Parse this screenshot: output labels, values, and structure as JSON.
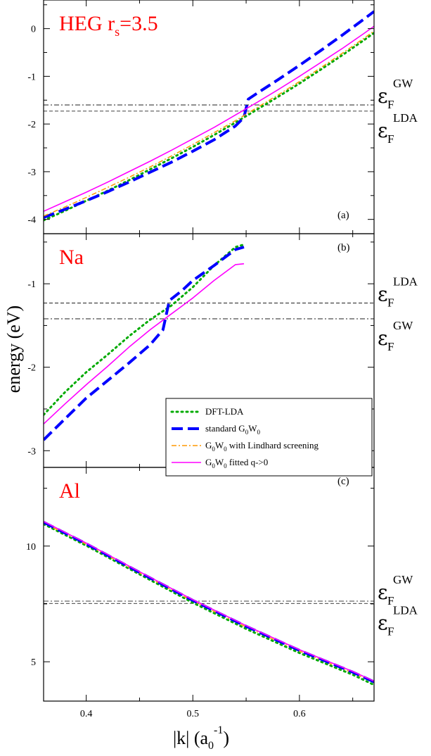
{
  "colors": {
    "dft_lda": "#00aa00",
    "standard_g0w0": "#0000ff",
    "lindhard": "#ff9900",
    "fitted": "#ff00ff",
    "title": "#ff0000"
  },
  "xlabel": {
    "main": "|k| (a",
    "sub": "0",
    "sup": "-1",
    "close": ")"
  },
  "ylabel": "energy (eV)",
  "legend": {
    "items": [
      {
        "series": "dft_lda",
        "text": "DFT-LDA"
      },
      {
        "series": "standard_g0w0",
        "prefix": "standard G",
        "sub1": "0",
        "mid": "W",
        "sub2": "0",
        "suffix": ""
      },
      {
        "series": "lindhard",
        "prefix": "G",
        "sub1": "0",
        "mid": "W",
        "sub2": "0",
        "suffix": " with Lindhard screening"
      },
      {
        "series": "fitted",
        "prefix": "G",
        "sub1": "0",
        "mid": "W",
        "sub2": "0",
        "suffix": " fitted q->0"
      }
    ]
  },
  "chart_data": [
    {
      "type": "line",
      "panel_title": {
        "main": "HEG r",
        "sub": "s",
        "tail": "=3.5"
      },
      "panel_letter": "(a)",
      "xlim": [
        0.36,
        0.67
      ],
      "ylim": [
        -4.3,
        0.6
      ],
      "yticks": [
        -4,
        -3,
        -2,
        -1,
        0
      ],
      "xticks": [
        0.4,
        0.5,
        0.6
      ],
      "fermi": [
        {
          "label": "GW",
          "value": -1.6,
          "style": "dashdot"
        },
        {
          "label": "LDA",
          "value": -1.73,
          "style": "dashed"
        }
      ],
      "series": [
        {
          "key": "dft_lda",
          "name": "DFT-LDA",
          "x": [
            0.36,
            0.38,
            0.4,
            0.42,
            0.44,
            0.46,
            0.48,
            0.5,
            0.52,
            0.54,
            0.56,
            0.58,
            0.6,
            0.62,
            0.64,
            0.66,
            0.67
          ],
          "y": [
            -4.02,
            -3.82,
            -3.61,
            -3.4,
            -3.18,
            -2.95,
            -2.72,
            -2.48,
            -2.23,
            -1.97,
            -1.7,
            -1.43,
            -1.15,
            -0.86,
            -0.56,
            -0.25,
            -0.09
          ]
        },
        {
          "key": "standard_g0w0",
          "name": "standard G0W0",
          "x": [
            0.36,
            0.38,
            0.4,
            0.42,
            0.44,
            0.46,
            0.48,
            0.5,
            0.52,
            0.54,
            0.548,
            0.552,
            0.56,
            0.58,
            0.6,
            0.62,
            0.64,
            0.66,
            0.67
          ],
          "y": [
            -3.96,
            -3.79,
            -3.61,
            -3.42,
            -3.22,
            -3.01,
            -2.8,
            -2.57,
            -2.33,
            -2.04,
            -1.86,
            -1.48,
            -1.36,
            -1.07,
            -0.77,
            -0.46,
            -0.14,
            0.19,
            0.36
          ]
        },
        {
          "key": "lindhard",
          "name": "G0W0 with Lindhard screening",
          "x": [
            0.36,
            0.38,
            0.4,
            0.42,
            0.44,
            0.46,
            0.48,
            0.5,
            0.52,
            0.54,
            0.56,
            0.58,
            0.6,
            0.62,
            0.64,
            0.66,
            0.67
          ],
          "y": [
            -3.93,
            -3.74,
            -3.54,
            -3.33,
            -3.12,
            -2.9,
            -2.67,
            -2.43,
            -2.18,
            -1.93,
            -1.66,
            -1.39,
            -1.11,
            -0.82,
            -0.52,
            -0.21,
            -0.05
          ]
        },
        {
          "key": "fitted",
          "name": "G0W0 fitted q->0",
          "x": [
            0.36,
            0.38,
            0.4,
            0.42,
            0.44,
            0.46,
            0.48,
            0.5,
            0.52,
            0.54,
            0.56,
            0.58,
            0.6,
            0.62,
            0.64,
            0.66,
            0.67
          ],
          "y": [
            -3.83,
            -3.63,
            -3.43,
            -3.22,
            -3.0,
            -2.78,
            -2.55,
            -2.31,
            -2.07,
            -1.81,
            -1.55,
            -1.28,
            -1.0,
            -0.71,
            -0.42,
            -0.11,
            0.05
          ]
        }
      ]
    },
    {
      "type": "line",
      "panel_title": {
        "main": "Na",
        "sub": "",
        "tail": ""
      },
      "panel_letter": "(b)",
      "xlim": [
        0.36,
        0.67
      ],
      "ylim": [
        -3.2,
        -0.4
      ],
      "yticks": [
        -3,
        -2,
        -1
      ],
      "xticks": [
        0.4,
        0.5,
        0.6
      ],
      "fermi": [
        {
          "label": "LDA",
          "value": -1.23,
          "style": "dashed"
        },
        {
          "label": "GW",
          "value": -1.42,
          "style": "dashdot"
        }
      ],
      "series": [
        {
          "key": "dft_lda",
          "name": "DFT-LDA",
          "x": [
            0.36,
            0.38,
            0.4,
            0.42,
            0.44,
            0.46,
            0.48,
            0.5,
            0.52,
            0.54,
            0.548
          ],
          "y": [
            -2.57,
            -2.3,
            -2.06,
            -1.85,
            -1.63,
            -1.43,
            -1.26,
            -1.04,
            -0.78,
            -0.56,
            -0.53
          ]
        },
        {
          "key": "standard_g0w0",
          "name": "standard G0W0",
          "x": [
            0.36,
            0.38,
            0.4,
            0.42,
            0.44,
            0.46,
            0.472,
            0.478,
            0.49,
            0.5,
            0.52,
            0.54,
            0.548
          ],
          "y": [
            -2.87,
            -2.62,
            -2.37,
            -2.16,
            -1.95,
            -1.73,
            -1.55,
            -1.2,
            -1.08,
            -0.96,
            -0.78,
            -0.59,
            -0.56
          ]
        },
        {
          "key": "fitted",
          "name": "G0W0 fitted q->0",
          "x": [
            0.36,
            0.38,
            0.4,
            0.42,
            0.44,
            0.46,
            0.48,
            0.5,
            0.52,
            0.54,
            0.548
          ],
          "y": [
            -2.68,
            -2.44,
            -2.21,
            -1.99,
            -1.76,
            -1.55,
            -1.36,
            -1.17,
            -0.96,
            -0.77,
            -0.76
          ]
        }
      ]
    },
    {
      "type": "line",
      "panel_title": {
        "main": "Al",
        "sub": "",
        "tail": ""
      },
      "panel_letter": "(c)",
      "xlim": [
        0.36,
        0.67
      ],
      "ylim": [
        3.3,
        13.4
      ],
      "yticks": [
        5,
        10
      ],
      "xticks": [
        0.4,
        0.5,
        0.6
      ],
      "fermi": [
        {
          "label": "GW",
          "value": 7.62,
          "style": "dashdot"
        },
        {
          "label": "LDA",
          "value": 7.52,
          "style": "dashed"
        }
      ],
      "series": [
        {
          "key": "dft_lda",
          "name": "DFT-LDA",
          "x": [
            0.36,
            0.4,
            0.45,
            0.5,
            0.55,
            0.6,
            0.65,
            0.67
          ],
          "y": [
            10.95,
            10.02,
            8.78,
            7.55,
            6.42,
            5.38,
            4.44,
            4.0
          ]
        },
        {
          "key": "lindhard",
          "name": "G0W0 with Lindhard screening",
          "x": [
            0.36,
            0.4,
            0.45,
            0.5,
            0.55,
            0.6,
            0.65,
            0.67
          ],
          "y": [
            11.0,
            10.08,
            8.84,
            7.62,
            6.5,
            5.46,
            4.52,
            4.1
          ]
        },
        {
          "key": "standard_g0w0",
          "name": "standard G0W0",
          "x": [
            0.36,
            0.4,
            0.45,
            0.5,
            0.55,
            0.6,
            0.65,
            0.67
          ],
          "y": [
            11.03,
            10.1,
            8.86,
            7.65,
            6.53,
            5.49,
            4.55,
            4.13
          ]
        },
        {
          "key": "fitted",
          "name": "G0W0 fitted q->0",
          "x": [
            0.36,
            0.4,
            0.45,
            0.5,
            0.55,
            0.6,
            0.65,
            0.67
          ],
          "y": [
            11.06,
            10.13,
            8.89,
            7.68,
            6.56,
            5.52,
            4.58,
            4.16
          ]
        }
      ]
    }
  ]
}
